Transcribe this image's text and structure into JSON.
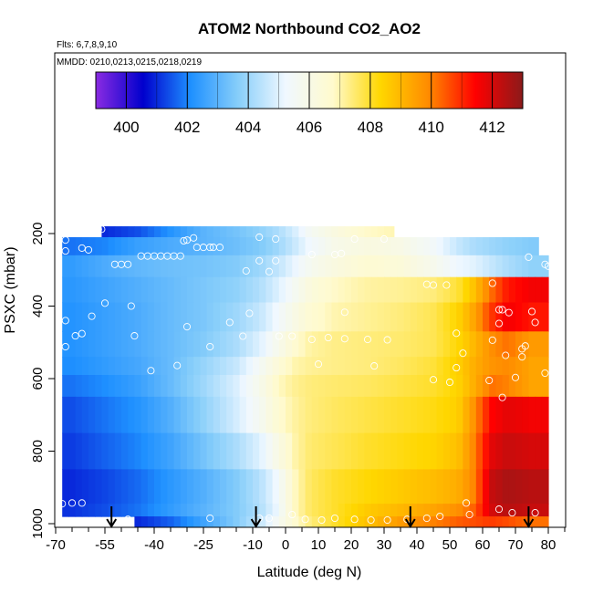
{
  "chart_data": {
    "type": "heatmap",
    "title": "ATOM2 Northbound CO2_AO2",
    "subtitle_lines": [
      "Flts: 6,7,8,9,10",
      "MMDD: 0210,0213,0215,0218,0219"
    ],
    "xlabel": "Latitude (deg N)",
    "ylabel": "PSXC (mbar)",
    "xlim": [
      -70,
      80
    ],
    "ylim": [
      1000,
      0
    ],
    "x_ticks": [
      "-70",
      "-55",
      "-40",
      "-25",
      "-10",
      "0",
      "10",
      "20",
      "30",
      "40",
      "50",
      "60",
      "70",
      "80"
    ],
    "y_ticks": [
      "200",
      "400",
      "600",
      "800",
      "1000"
    ],
    "colorbar": {
      "range": [
        399,
        413
      ],
      "tick_labels": [
        "400",
        "402",
        "404",
        "406",
        "408",
        "410",
        "412"
      ],
      "colors": [
        "#8a2be2",
        "#0000cd",
        "#1e90ff",
        "#87cefa",
        "#f0f8ff",
        "#fffacd",
        "#ffd700",
        "#ff8c00",
        "#ff0000",
        "#8b1a1a"
      ]
    },
    "lat_edges": [
      -70,
      -60,
      -50,
      -40,
      -30,
      -20,
      -10,
      -5,
      0,
      5,
      10,
      20,
      30,
      40,
      50,
      55,
      60,
      65,
      70,
      80
    ],
    "pressure_rows": [
      {
        "p_top": 180,
        "p_bot": 210,
        "lat_min": -56,
        "lat_max": 33,
        "values": [
          401.0,
          401.0,
          401.4,
          402.2,
          403.0,
          403.4,
          403.8,
          404.2,
          404.8,
          405.6,
          406.2,
          406.8,
          407.0,
          null,
          null,
          null,
          null,
          null,
          null
        ]
      },
      {
        "p_top": 210,
        "p_bot": 260,
        "lat_min": -68,
        "lat_max": 77,
        "values": [
          401.8,
          402.0,
          402.5,
          402.8,
          403.0,
          403.3,
          403.6,
          404.0,
          404.6,
          405.3,
          405.9,
          406.2,
          406.0,
          405.4,
          404.6,
          404.2,
          404.0,
          403.8,
          403.6
        ]
      },
      {
        "p_top": 260,
        "p_bot": 320,
        "lat_min": -68,
        "lat_max": 80,
        "values": [
          402.4,
          402.8,
          403.1,
          403.3,
          403.4,
          403.6,
          404.0,
          404.5,
          405.1,
          405.7,
          406.2,
          406.6,
          406.4,
          405.8,
          405.2,
          405.0,
          404.6,
          404.2,
          403.8
        ]
      },
      {
        "p_top": 320,
        "p_bot": 390,
        "lat_min": -68,
        "lat_max": 80,
        "values": [
          402.3,
          402.6,
          402.9,
          403.2,
          403.5,
          403.8,
          404.3,
          404.9,
          405.6,
          406.3,
          406.8,
          407.1,
          407.2,
          407.4,
          407.9,
          408.8,
          410.2,
          411.2,
          411.6
        ]
      },
      {
        "p_top": 390,
        "p_bot": 470,
        "lat_min": -68,
        "lat_max": 80,
        "values": [
          402.2,
          402.5,
          402.8,
          403.2,
          403.5,
          404.0,
          404.6,
          405.3,
          406.0,
          406.6,
          407.0,
          407.2,
          407.4,
          407.7,
          408.4,
          409.4,
          410.8,
          411.6,
          411.2
        ]
      },
      {
        "p_top": 470,
        "p_bot": 540,
        "lat_min": -68,
        "lat_max": 80,
        "values": [
          402.2,
          402.5,
          402.8,
          403.2,
          403.6,
          404.2,
          405.0,
          405.8,
          406.6,
          407.1,
          407.3,
          407.4,
          407.5,
          407.7,
          408.3,
          409.0,
          409.8,
          410.2,
          409.6
        ]
      },
      {
        "p_top": 540,
        "p_bot": 590,
        "lat_min": -68,
        "lat_max": 80,
        "values": [
          402.1,
          402.4,
          402.7,
          403.2,
          403.9,
          404.6,
          405.6,
          406.4,
          407.0,
          407.2,
          407.3,
          407.4,
          407.6,
          407.9,
          408.5,
          409.2,
          409.7,
          409.9,
          409.4
        ]
      },
      {
        "p_top": 590,
        "p_bot": 650,
        "lat_min": -68,
        "lat_max": 80,
        "values": [
          401.8,
          402.1,
          402.5,
          403.2,
          404.0,
          404.9,
          405.9,
          406.8,
          407.2,
          407.4,
          407.5,
          407.6,
          407.8,
          408.0,
          408.4,
          409.2,
          410.2,
          410.0,
          409.4
        ]
      },
      {
        "p_top": 650,
        "p_bot": 750,
        "lat_min": -68,
        "lat_max": 80,
        "values": [
          401.4,
          401.8,
          402.2,
          402.9,
          403.8,
          404.8,
          405.7,
          406.6,
          407.1,
          407.4,
          407.6,
          407.8,
          408.0,
          408.2,
          408.5,
          409.8,
          411.4,
          411.8,
          411.6
        ]
      },
      {
        "p_top": 750,
        "p_bot": 850,
        "lat_min": -68,
        "lat_max": 80,
        "values": [
          401.2,
          401.6,
          402.0,
          402.6,
          403.4,
          404.2,
          405.0,
          406.0,
          407.0,
          407.5,
          407.7,
          408.0,
          408.2,
          408.4,
          408.8,
          410.0,
          411.8,
          412.2,
          412.0
        ]
      },
      {
        "p_top": 850,
        "p_bot": 945,
        "lat_min": -68,
        "lat_max": 80,
        "values": [
          401.0,
          401.3,
          401.7,
          402.3,
          402.9,
          403.6,
          404.4,
          405.3,
          406.8,
          407.6,
          408.0,
          408.3,
          408.6,
          408.9,
          409.2,
          410.0,
          412.2,
          412.6,
          412.4
        ]
      },
      {
        "p_top": 945,
        "p_bot": 980,
        "lat_min": -68,
        "lat_max": 80,
        "values": [
          401.1,
          401.4,
          401.8,
          402.4,
          403.0,
          403.6,
          404.3,
          405.2,
          406.8,
          407.6,
          408.0,
          408.6,
          409.0,
          409.4,
          409.8,
          410.4,
          412.0,
          412.4,
          412.2
        ]
      },
      {
        "p_top": 980,
        "p_bot": 1010,
        "lat_min": -46,
        "lat_max": 80,
        "values": [
          null,
          null,
          401.0,
          401.6,
          402.6,
          403.6,
          404.6,
          405.6,
          406.6,
          407.4,
          408.0,
          408.8,
          409.6,
          410.0,
          410.4,
          410.6,
          410.8,
          410.6,
          410.2
        ]
      }
    ],
    "observations": [
      [
        -57,
        188
      ],
      [
        -56,
        188
      ],
      [
        -67,
        218
      ],
      [
        -62,
        240
      ],
      [
        -60,
        245
      ],
      [
        -31,
        220
      ],
      [
        -30,
        218
      ],
      [
        -28,
        212
      ],
      [
        -8,
        210
      ],
      [
        -3,
        215
      ],
      [
        21,
        215
      ],
      [
        30,
        215
      ],
      [
        -67,
        248
      ],
      [
        -27,
        238
      ],
      [
        -25,
        238
      ],
      [
        -23,
        238
      ],
      [
        -22,
        238
      ],
      [
        -20,
        238
      ],
      [
        -44,
        262
      ],
      [
        -42,
        262
      ],
      [
        -40,
        262
      ],
      [
        -38,
        262
      ],
      [
        -36,
        262
      ],
      [
        -34,
        262
      ],
      [
        -32,
        262
      ],
      [
        -52,
        285
      ],
      [
        -50,
        285
      ],
      [
        -48,
        285
      ],
      [
        -8,
        275
      ],
      [
        -3,
        275
      ],
      [
        8,
        258
      ],
      [
        15,
        258
      ],
      [
        17,
        255
      ],
      [
        74,
        265
      ],
      [
        79,
        285
      ],
      [
        80,
        290
      ],
      [
        -12,
        303
      ],
      [
        -5,
        305
      ],
      [
        43,
        340
      ],
      [
        45,
        342
      ],
      [
        49,
        342
      ],
      [
        63,
        337
      ],
      [
        -55,
        392
      ],
      [
        -47,
        400
      ],
      [
        -59,
        428
      ],
      [
        -67,
        440
      ],
      [
        -11,
        420
      ],
      [
        -17,
        445
      ],
      [
        -30,
        457
      ],
      [
        18,
        417
      ],
      [
        65,
        410
      ],
      [
        66,
        410
      ],
      [
        68,
        418
      ],
      [
        75,
        415
      ],
      [
        76,
        445
      ],
      [
        65,
        448
      ],
      [
        -62,
        476
      ],
      [
        -64,
        482
      ],
      [
        -46,
        482
      ],
      [
        -13,
        483
      ],
      [
        -2,
        483
      ],
      [
        2,
        483
      ],
      [
        -67,
        512
      ],
      [
        -23,
        512
      ],
      [
        8,
        492
      ],
      [
        13,
        487
      ],
      [
        18,
        490
      ],
      [
        25,
        492
      ],
      [
        31,
        493
      ],
      [
        52,
        475
      ],
      [
        63,
        494
      ],
      [
        73,
        510
      ],
      [
        72,
        518
      ],
      [
        54,
        530
      ],
      [
        67,
        536
      ],
      [
        72,
        540
      ],
      [
        -41,
        578
      ],
      [
        -33,
        564
      ],
      [
        10,
        560
      ],
      [
        27,
        565
      ],
      [
        52,
        570
      ],
      [
        45,
        603
      ],
      [
        50,
        610
      ],
      [
        62,
        605
      ],
      [
        70,
        597
      ],
      [
        79,
        585
      ],
      [
        66,
        652
      ],
      [
        -65,
        943
      ],
      [
        -68,
        945
      ],
      [
        -62,
        943
      ],
      [
        55,
        943
      ],
      [
        65,
        960
      ],
      [
        -48,
        988
      ],
      [
        -23,
        985
      ],
      [
        -8,
        985
      ],
      [
        -5,
        985
      ],
      [
        2,
        975
      ],
      [
        6,
        988
      ],
      [
        11,
        990
      ],
      [
        15,
        985
      ],
      [
        21,
        988
      ],
      [
        26,
        990
      ],
      [
        31,
        990
      ],
      [
        37,
        988
      ],
      [
        43,
        985
      ],
      [
        47,
        980
      ],
      [
        56,
        975
      ],
      [
        69,
        970
      ],
      [
        76,
        970
      ]
    ],
    "arrow_latitudes": [
      -53,
      -9,
      38,
      74
    ]
  }
}
